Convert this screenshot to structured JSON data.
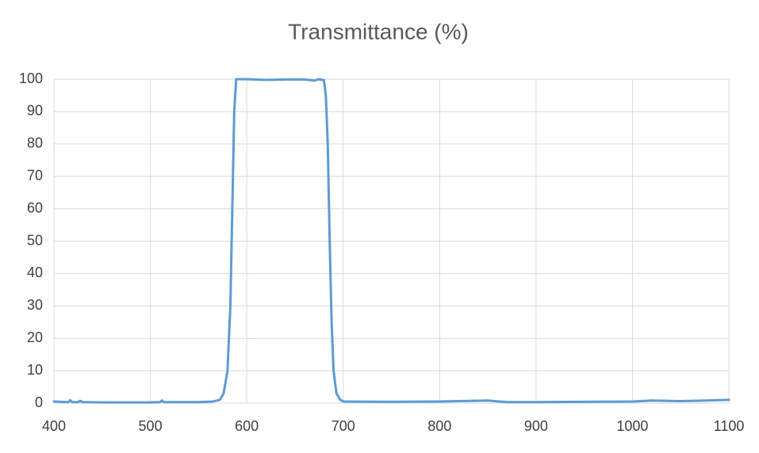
{
  "chart_data": {
    "type": "line",
    "title": "Transmittance (%)",
    "x": [
      400,
      415,
      417,
      419,
      425,
      427,
      430,
      450,
      500,
      510,
      512,
      514,
      550,
      565,
      572,
      576,
      580,
      583,
      585,
      587,
      589,
      600,
      620,
      640,
      660,
      670,
      675,
      680,
      682,
      684,
      686,
      688,
      690,
      693,
      697,
      700,
      750,
      800,
      850,
      870,
      900,
      950,
      1000,
      1020,
      1050,
      1100
    ],
    "series": [
      {
        "name": "Transmittance",
        "color": "#5b9bd5",
        "values": [
          0.5,
          0.3,
          0.9,
          0.3,
          0.3,
          0.7,
          0.3,
          0.2,
          0.2,
          0.3,
          0.8,
          0.3,
          0.3,
          0.5,
          1,
          3,
          10,
          30,
          60,
          90,
          100,
          100,
          99.8,
          99.9,
          99.9,
          99.6,
          100,
          99.7,
          95,
          80,
          50,
          25,
          10,
          3,
          1,
          0.5,
          0.4,
          0.5,
          0.8,
          0.3,
          0.3,
          0.4,
          0.5,
          0.8,
          0.6,
          1.0
        ]
      }
    ],
    "xlim": [
      400,
      1100
    ],
    "xticks": [
      400,
      500,
      600,
      700,
      800,
      900,
      1000,
      1100
    ],
    "ylim": [
      0,
      100
    ],
    "yticks": [
      0,
      10,
      20,
      30,
      40,
      50,
      60,
      70,
      80,
      90,
      100
    ],
    "grid": true
  }
}
